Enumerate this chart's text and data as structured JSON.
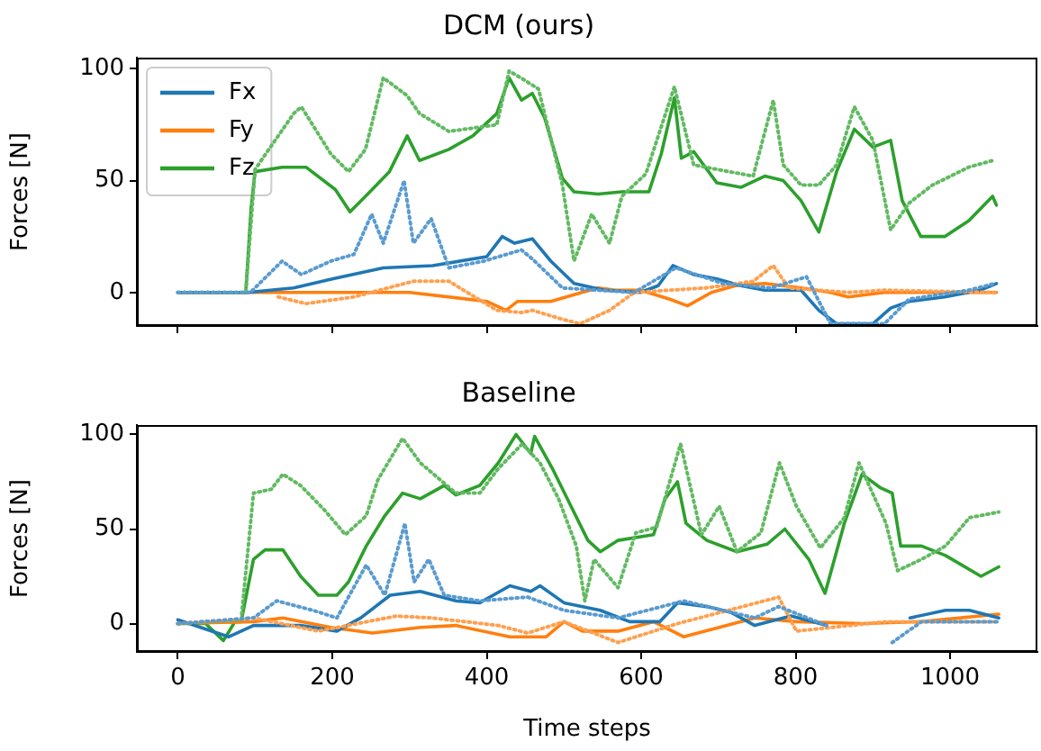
{
  "chart_data": [
    {
      "type": "line",
      "title": "DCM (ours)",
      "ylabel": "Forces [N]",
      "xlim": [
        -53,
        1113
      ],
      "xticks": [
        0,
        200,
        400,
        600,
        800,
        1000
      ],
      "ylim": [
        -15,
        105
      ],
      "yticks": [
        0,
        50,
        100
      ],
      "grid": false,
      "legend": "top left",
      "tick_labels": "y",
      "series": [
        {
          "name": "Fx",
          "color": "#1f77b4",
          "line_style": "solid",
          "x": [
            0,
            90,
            150,
            200,
            266,
            330,
            400,
            420,
            436,
            459,
            483,
            513,
            552,
            599,
            622,
            641,
            668,
            698,
            729,
            760,
            807,
            830,
            853,
            900,
            923,
            947,
            993,
            1039,
            1060
          ],
          "values": [
            0,
            0,
            2,
            6,
            11,
            12,
            16,
            25,
            22,
            24,
            14,
            4,
            1,
            0,
            3,
            12,
            8,
            6,
            3,
            1,
            1,
            -8,
            -14,
            -14,
            -7,
            -4,
            -2,
            1,
            4
          ]
        },
        {
          "name": "Fy",
          "color": "#ff7f0e",
          "line_style": "solid",
          "x": [
            0,
            90,
            200,
            300,
            400,
            425,
            440,
            483,
            513,
            544,
            567,
            599,
            637,
            660,
            691,
            722,
            760,
            807,
            845,
            868,
            915,
            977,
            1060
          ],
          "values": [
            0,
            0,
            0,
            0,
            -4,
            -8,
            -4,
            -4,
            -1,
            2,
            1,
            1,
            -3,
            -6,
            0,
            3,
            4,
            2,
            0,
            -2,
            0,
            0,
            0
          ]
        },
        {
          "name": "Fz",
          "color": "#2ca02c",
          "line_style": "solid",
          "x": [
            0,
            88,
            95,
            100,
            135,
            166,
            204,
            223,
            243,
            274,
            297,
            313,
            351,
            382,
            413,
            429,
            445,
            459,
            475,
            498,
            513,
            544,
            575,
            610,
            626,
            643,
            652,
            668,
            698,
            729,
            760,
            784,
            807,
            830,
            853,
            876,
            900,
            923,
            938,
            962,
            993,
            1024,
            1055,
            1060
          ],
          "values": [
            0,
            0,
            38,
            54,
            56,
            56,
            46,
            36,
            43,
            54,
            70,
            59,
            64,
            70,
            80,
            96,
            86,
            89,
            78,
            51,
            45,
            44,
            45,
            45,
            62,
            87,
            60,
            63,
            49,
            47,
            52,
            50,
            41,
            27,
            54,
            73,
            65,
            68,
            41,
            25,
            25,
            32,
            43,
            39
          ]
        },
        {
          "color": "#5a9bd0",
          "line_style": "dotted",
          "x": [
            0,
            94,
            135,
            160,
            198,
            228,
            251,
            266,
            293,
            305,
            328,
            351,
            396,
            445,
            459,
            498,
            591,
            645,
            706,
            768,
            814,
            845,
            915,
            947,
            1024,
            1058
          ],
          "values": [
            0,
            0,
            14,
            8,
            14,
            17,
            35,
            22,
            50,
            22,
            33,
            11,
            14,
            19,
            15,
            2,
            0,
            11,
            4,
            2,
            7,
            -14,
            -14,
            -3,
            1,
            4
          ]
        },
        {
          "color": "#ffa04f",
          "line_style": "dotted",
          "x": [
            130,
            166,
            228,
            305,
            351,
            413,
            445,
            459,
            498,
            521,
            559,
            591,
            683,
            745,
            771,
            791,
            868,
            915,
            1058
          ],
          "values": [
            -2,
            -5,
            -2,
            5,
            5,
            -8,
            -9,
            -8,
            -12,
            -14,
            -8,
            0,
            2,
            5,
            12,
            2,
            0,
            1,
            0
          ]
        },
        {
          "color": "#62ba62",
          "line_style": "dotted",
          "x": [
            0,
            88,
            100,
            150,
            160,
            198,
            221,
            243,
            266,
            297,
            313,
            351,
            413,
            429,
            444,
            467,
            498,
            513,
            536,
            559,
            575,
            606,
            643,
            668,
            745,
            771,
            784,
            807,
            830,
            853,
            876,
            900,
            923,
            947,
            977,
            1024,
            1055
          ],
          "values": [
            0,
            0,
            55,
            80,
            83,
            62,
            54,
            64,
            96,
            88,
            80,
            72,
            75,
            99,
            96,
            91,
            48,
            14,
            35,
            22,
            43,
            53,
            92,
            57,
            52,
            86,
            57,
            48,
            48,
            57,
            83,
            68,
            28,
            40,
            48,
            56,
            59
          ]
        }
      ]
    },
    {
      "type": "line",
      "title": "Baseline",
      "xlabel": "Time steps",
      "ylabel": "Forces [N]",
      "xlim": [
        -53,
        1113
      ],
      "xticks": [
        0,
        200,
        400,
        600,
        800,
        1000
      ],
      "ylim": [
        -15,
        105
      ],
      "yticks": [
        0,
        50,
        100
      ],
      "grid": false,
      "series": [
        {
          "color": "#1f77b4",
          "line_style": "solid",
          "x": [
            0,
            66,
            98,
            159,
            206,
            237,
            275,
            314,
            360,
            391,
            430,
            457,
            469,
            500,
            547,
            585,
            624,
            647,
            685,
            716,
            747,
            794,
            840,
            871,
            925,
            948,
            994,
            1025,
            1063
          ],
          "values": [
            2,
            -7,
            -1,
            -1,
            -4,
            3,
            15,
            17,
            12,
            11,
            20,
            17,
            20,
            11,
            7,
            1,
            1,
            11,
            9,
            6,
            -1,
            4,
            -1,
            null,
            null,
            3,
            7,
            7,
            3
          ]
        },
        {
          "color": "#ff7f0e",
          "line_style": "solid",
          "x": [
            0,
            98,
            136,
            198,
            252,
            314,
            360,
            430,
            477,
            500,
            524,
            570,
            616,
            655,
            701,
            747,
            801,
            886,
            963,
            1063
          ],
          "values": [
            0,
            1,
            3,
            -2,
            -5,
            -2,
            -1,
            -7,
            -7,
            1,
            -4,
            -4,
            1,
            -7,
            -2,
            3,
            1,
            0,
            1,
            5
          ]
        },
        {
          "color": "#2ca02c",
          "line_style": "solid",
          "x": [
            0,
            36,
            59,
            74,
            82,
            98,
            113,
            136,
            159,
            182,
            206,
            221,
            244,
            268,
            291,
            314,
            345,
            360,
            391,
            415,
            438,
            457,
            462,
            485,
            508,
            531,
            547,
            570,
            616,
            631,
            647,
            658,
            685,
            724,
            763,
            786,
            817,
            838,
            863,
            886,
            909,
            925,
            936,
            963,
            994,
            1040,
            1063
          ],
          "values": [
            0,
            0,
            -9,
            1,
            1,
            34,
            39,
            39,
            25,
            15,
            15,
            22,
            41,
            57,
            69,
            66,
            73,
            68,
            73,
            85,
            100,
            90,
            99,
            82,
            63,
            44,
            38,
            44,
            47,
            66,
            75,
            53,
            44,
            38,
            42,
            50,
            34,
            16,
            53,
            79,
            72,
            69,
            41,
            41,
            36,
            25,
            30
          ]
        },
        {
          "color": "#5a9bd0",
          "line_style": "dotted",
          "x": [
            0,
            98,
            128,
            175,
            206,
            244,
            268,
            294,
            306,
            325,
            345,
            391,
            453,
            500,
            570,
            655,
            747,
            778,
            840,
            871,
            925,
            963,
            1063
          ],
          "values": [
            0,
            3,
            12,
            7,
            3,
            31,
            15,
            53,
            22,
            34,
            15,
            12,
            14,
            7,
            3,
            12,
            3,
            9,
            -1,
            null,
            -10,
            1,
            1
          ]
        },
        {
          "color": "#ffa04f",
          "line_style": "dotted",
          "x": [
            0,
            98,
            182,
            283,
            329,
            415,
            453,
            500,
            570,
            647,
            778,
            801,
            917,
            1063
          ],
          "values": [
            0,
            3,
            -4,
            4,
            3,
            -1,
            -5,
            1,
            -10,
            0,
            14,
            -4,
            1,
            1
          ]
        },
        {
          "color": "#62ba62",
          "line_style": "dotted",
          "x": [
            0,
            82,
            98,
            121,
            136,
            159,
            190,
            217,
            244,
            259,
            291,
            314,
            360,
            391,
            415,
            446,
            469,
            493,
            516,
            527,
            539,
            570,
            593,
            620,
            651,
            678,
            701,
            724,
            755,
            779,
            801,
            832,
            863,
            882,
            917,
            932,
            963,
            994,
            1025,
            1063
          ],
          "values": [
            0,
            2,
            69,
            71,
            79,
            73,
            60,
            47,
            57,
            76,
            98,
            85,
            69,
            69,
            82,
            95,
            85,
            66,
            41,
            12,
            34,
            19,
            48,
            51,
            95,
            47,
            62,
            38,
            48,
            85,
            62,
            40,
            56,
            85,
            53,
            28,
            34,
            41,
            56,
            59
          ]
        }
      ]
    }
  ]
}
